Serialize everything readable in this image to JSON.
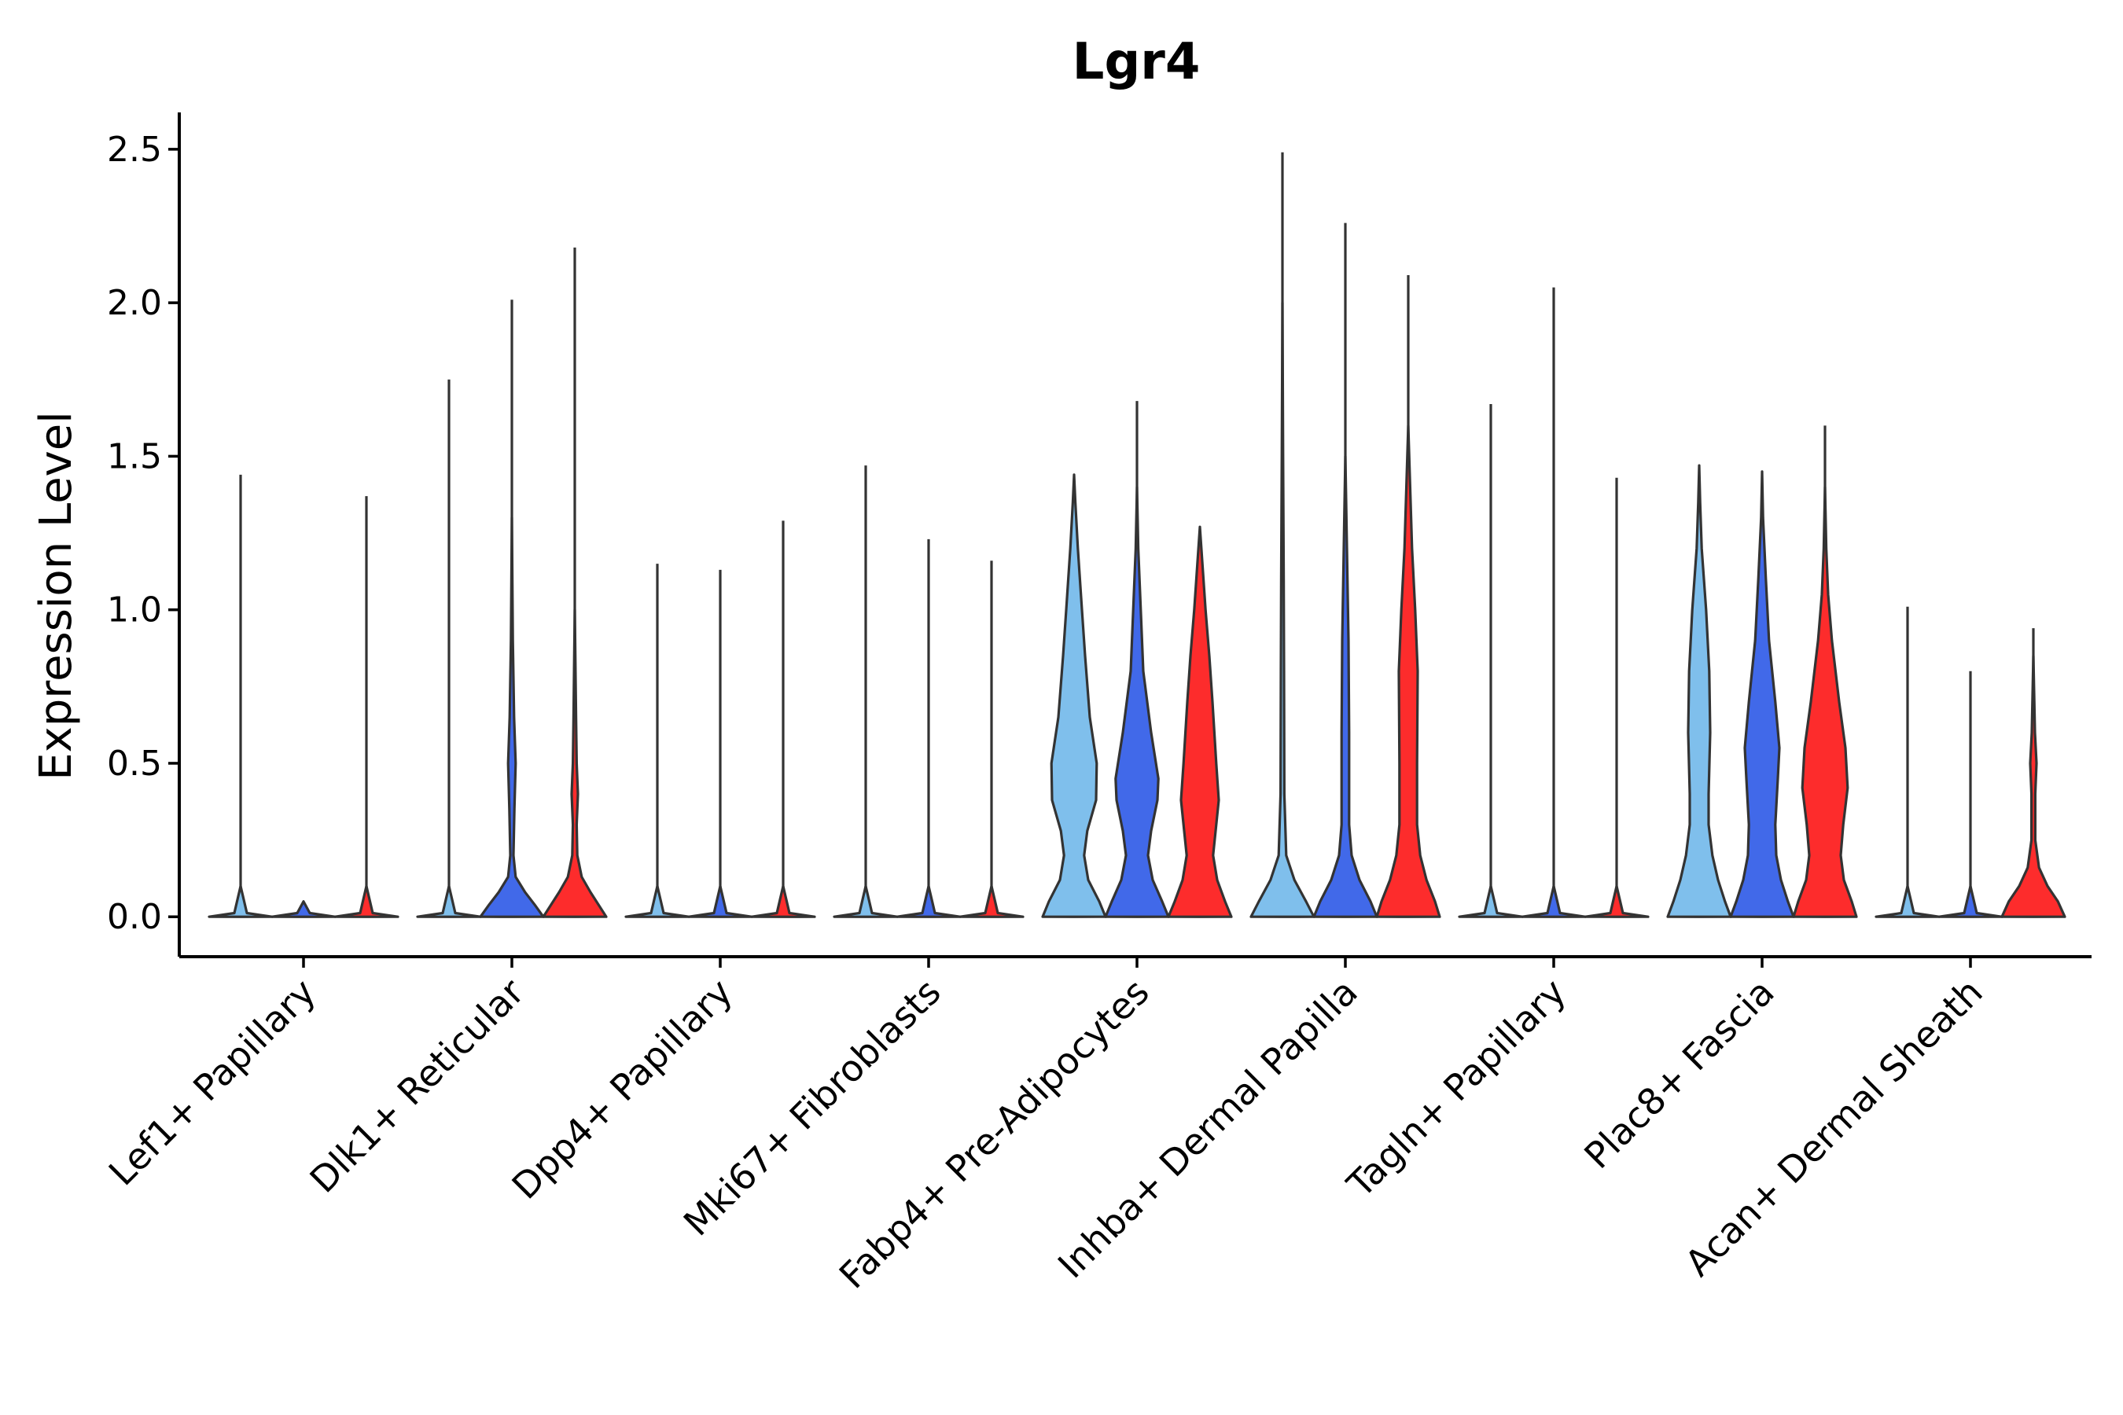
{
  "chart_data": {
    "type": "violin",
    "title": "Lgr4",
    "xlabel": "",
    "ylabel": "Expression Level",
    "ylim": [
      -0.13,
      2.62
    ],
    "yticks": [
      "0.0",
      "0.5",
      "1.0",
      "1.5",
      "2.0",
      "2.5"
    ],
    "ytick_values": [
      0.0,
      0.5,
      1.0,
      1.5,
      2.0,
      2.5
    ],
    "colors": {
      "light": "#7fbfec",
      "blue": "#4169e9",
      "red": "#fd2c2c"
    },
    "groups": [
      {
        "name": "Lef1+ Papillary",
        "violins": [
          {
            "color": "light",
            "max": 1.44,
            "spine": true,
            "profile": [
              [
                0.0,
                1.0
              ],
              [
                0.012,
                0.2
              ],
              [
                0.1,
                0.0
              ]
            ]
          },
          {
            "color": "blue",
            "max": 0.002,
            "spine": false,
            "profile": [
              [
                0.0,
                1.0
              ],
              [
                0.012,
                0.2
              ],
              [
                0.05,
                0.0
              ]
            ]
          },
          {
            "color": "red",
            "max": 1.37,
            "spine": true,
            "profile": [
              [
                0.0,
                1.0
              ],
              [
                0.012,
                0.2
              ],
              [
                0.1,
                0.0
              ]
            ]
          }
        ]
      },
      {
        "name": "Dlk1+ Reticular",
        "violins": [
          {
            "color": "light",
            "max": 1.75,
            "spine": true,
            "profile": [
              [
                0.0,
                1.0
              ],
              [
                0.012,
                0.2
              ],
              [
                0.1,
                0.0
              ]
            ]
          },
          {
            "color": "blue",
            "max": 2.01,
            "spine": true,
            "profile": [
              [
                0.0,
                1.0
              ],
              [
                0.04,
                0.72
              ],
              [
                0.08,
                0.42
              ],
              [
                0.13,
                0.12
              ],
              [
                0.2,
                0.05
              ],
              [
                0.35,
                0.08
              ],
              [
                0.5,
                0.12
              ],
              [
                0.65,
                0.07
              ],
              [
                0.9,
                0.03
              ],
              [
                1.3,
                0.0
              ]
            ]
          },
          {
            "color": "red",
            "max": 2.18,
            "spine": true,
            "profile": [
              [
                0.0,
                1.0
              ],
              [
                0.04,
                0.75
              ],
              [
                0.08,
                0.5
              ],
              [
                0.13,
                0.22
              ],
              [
                0.2,
                0.08
              ],
              [
                0.3,
                0.06
              ],
              [
                0.4,
                0.1
              ],
              [
                0.5,
                0.06
              ],
              [
                0.65,
                0.04
              ],
              [
                1.0,
                0.0
              ]
            ]
          }
        ]
      },
      {
        "name": "Dpp4+ Papillary",
        "violins": [
          {
            "color": "light",
            "max": 1.15,
            "spine": true,
            "profile": [
              [
                0.0,
                1.0
              ],
              [
                0.012,
                0.2
              ],
              [
                0.1,
                0.0
              ]
            ]
          },
          {
            "color": "blue",
            "max": 1.13,
            "spine": true,
            "profile": [
              [
                0.0,
                1.0
              ],
              [
                0.012,
                0.2
              ],
              [
                0.1,
                0.0
              ]
            ]
          },
          {
            "color": "red",
            "max": 1.29,
            "spine": true,
            "profile": [
              [
                0.0,
                1.0
              ],
              [
                0.012,
                0.2
              ],
              [
                0.1,
                0.0
              ]
            ]
          }
        ]
      },
      {
        "name": "Mki67+ Fibroblasts",
        "violins": [
          {
            "color": "light",
            "max": 1.47,
            "spine": true,
            "profile": [
              [
                0.0,
                1.0
              ],
              [
                0.012,
                0.2
              ],
              [
                0.1,
                0.0
              ]
            ]
          },
          {
            "color": "blue",
            "max": 1.23,
            "spine": true,
            "profile": [
              [
                0.0,
                1.0
              ],
              [
                0.012,
                0.2
              ],
              [
                0.1,
                0.0
              ]
            ]
          },
          {
            "color": "red",
            "max": 1.16,
            "spine": true,
            "profile": [
              [
                0.0,
                1.0
              ],
              [
                0.012,
                0.2
              ],
              [
                0.1,
                0.0
              ]
            ]
          }
        ]
      },
      {
        "name": "Fabp4+ Pre-Adipocytes",
        "violins": [
          {
            "color": "light",
            "max": 1.44,
            "spine": false,
            "profile": [
              [
                0.0,
                1.0
              ],
              [
                0.05,
                0.8
              ],
              [
                0.12,
                0.45
              ],
              [
                0.2,
                0.32
              ],
              [
                0.28,
                0.42
              ],
              [
                0.38,
                0.7
              ],
              [
                0.5,
                0.72
              ],
              [
                0.65,
                0.5
              ],
              [
                0.85,
                0.35
              ],
              [
                1.0,
                0.25
              ],
              [
                1.2,
                0.12
              ],
              [
                1.35,
                0.04
              ],
              [
                1.44,
                0.0
              ]
            ]
          },
          {
            "color": "blue",
            "max": 1.68,
            "spine": true,
            "profile": [
              [
                0.0,
                1.0
              ],
              [
                0.05,
                0.8
              ],
              [
                0.12,
                0.5
              ],
              [
                0.2,
                0.35
              ],
              [
                0.28,
                0.45
              ],
              [
                0.38,
                0.65
              ],
              [
                0.45,
                0.68
              ],
              [
                0.6,
                0.45
              ],
              [
                0.8,
                0.2
              ],
              [
                1.0,
                0.12
              ],
              [
                1.2,
                0.04
              ],
              [
                1.4,
                0.0
              ]
            ]
          },
          {
            "color": "red",
            "max": 1.27,
            "spine": false,
            "profile": [
              [
                0.0,
                1.0
              ],
              [
                0.05,
                0.8
              ],
              [
                0.12,
                0.55
              ],
              [
                0.2,
                0.42
              ],
              [
                0.28,
                0.5
              ],
              [
                0.38,
                0.6
              ],
              [
                0.5,
                0.52
              ],
              [
                0.7,
                0.4
              ],
              [
                0.85,
                0.3
              ],
              [
                1.0,
                0.18
              ],
              [
                1.15,
                0.08
              ],
              [
                1.27,
                0.0
              ]
            ]
          }
        ]
      },
      {
        "name": "Inhba+ Dermal Papilla",
        "violins": [
          {
            "color": "light",
            "max": 2.49,
            "spine": true,
            "profile": [
              [
                0.0,
                1.0
              ],
              [
                0.05,
                0.75
              ],
              [
                0.12,
                0.38
              ],
              [
                0.2,
                0.12
              ],
              [
                0.4,
                0.06
              ],
              [
                0.8,
                0.05
              ],
              [
                1.1,
                0.04
              ],
              [
                1.5,
                0.02
              ],
              [
                2.0,
                0.0
              ]
            ]
          },
          {
            "color": "blue",
            "max": 2.26,
            "spine": true,
            "profile": [
              [
                0.0,
                1.0
              ],
              [
                0.05,
                0.8
              ],
              [
                0.12,
                0.45
              ],
              [
                0.2,
                0.2
              ],
              [
                0.3,
                0.12
              ],
              [
                0.6,
                0.12
              ],
              [
                0.9,
                0.1
              ],
              [
                1.2,
                0.05
              ],
              [
                1.5,
                0.0
              ]
            ]
          },
          {
            "color": "red",
            "max": 2.09,
            "spine": true,
            "profile": [
              [
                0.0,
                1.0
              ],
              [
                0.05,
                0.85
              ],
              [
                0.12,
                0.58
              ],
              [
                0.2,
                0.38
              ],
              [
                0.3,
                0.28
              ],
              [
                0.5,
                0.28
              ],
              [
                0.8,
                0.3
              ],
              [
                1.0,
                0.22
              ],
              [
                1.2,
                0.12
              ],
              [
                1.4,
                0.06
              ],
              [
                1.6,
                0.0
              ]
            ]
          }
        ]
      },
      {
        "name": "Tagln+ Papillary",
        "violins": [
          {
            "color": "light",
            "max": 1.67,
            "spine": true,
            "profile": [
              [
                0.0,
                1.0
              ],
              [
                0.012,
                0.2
              ],
              [
                0.1,
                0.0
              ]
            ]
          },
          {
            "color": "blue",
            "max": 2.05,
            "spine": true,
            "profile": [
              [
                0.0,
                1.0
              ],
              [
                0.012,
                0.2
              ],
              [
                0.1,
                0.0
              ]
            ]
          },
          {
            "color": "red",
            "max": 1.43,
            "spine": true,
            "profile": [
              [
                0.0,
                1.0
              ],
              [
                0.012,
                0.2
              ],
              [
                0.1,
                0.0
              ]
            ]
          }
        ]
      },
      {
        "name": "Plac8+ Fascia",
        "violins": [
          {
            "color": "light",
            "max": 1.47,
            "spine": false,
            "profile": [
              [
                0.0,
                1.0
              ],
              [
                0.05,
                0.82
              ],
              [
                0.12,
                0.6
              ],
              [
                0.2,
                0.42
              ],
              [
                0.3,
                0.3
              ],
              [
                0.4,
                0.3
              ],
              [
                0.6,
                0.35
              ],
              [
                0.8,
                0.32
              ],
              [
                1.0,
                0.22
              ],
              [
                1.2,
                0.08
              ],
              [
                1.35,
                0.03
              ],
              [
                1.47,
                0.0
              ]
            ]
          },
          {
            "color": "blue",
            "max": 1.45,
            "spine": false,
            "profile": [
              [
                0.0,
                1.0
              ],
              [
                0.05,
                0.82
              ],
              [
                0.12,
                0.6
              ],
              [
                0.2,
                0.45
              ],
              [
                0.3,
                0.42
              ],
              [
                0.45,
                0.5
              ],
              [
                0.55,
                0.55
              ],
              [
                0.7,
                0.42
              ],
              [
                0.9,
                0.22
              ],
              [
                1.1,
                0.12
              ],
              [
                1.3,
                0.03
              ],
              [
                1.45,
                0.0
              ]
            ]
          },
          {
            "color": "red",
            "max": 1.6,
            "spine": true,
            "profile": [
              [
                0.0,
                1.0
              ],
              [
                0.05,
                0.85
              ],
              [
                0.12,
                0.6
              ],
              [
                0.2,
                0.5
              ],
              [
                0.3,
                0.58
              ],
              [
                0.42,
                0.72
              ],
              [
                0.55,
                0.65
              ],
              [
                0.7,
                0.45
              ],
              [
                0.9,
                0.22
              ],
              [
                1.05,
                0.1
              ],
              [
                1.2,
                0.04
              ],
              [
                1.4,
                0.0
              ]
            ]
          }
        ]
      },
      {
        "name": "Acan+ Dermal Sheath",
        "violins": [
          {
            "color": "light",
            "max": 1.01,
            "spine": true,
            "profile": [
              [
                0.0,
                1.0
              ],
              [
                0.012,
                0.2
              ],
              [
                0.1,
                0.0
              ]
            ]
          },
          {
            "color": "blue",
            "max": 0.8,
            "spine": true,
            "profile": [
              [
                0.0,
                1.0
              ],
              [
                0.012,
                0.2
              ],
              [
                0.1,
                0.0
              ]
            ]
          },
          {
            "color": "red",
            "max": 0.94,
            "spine": true,
            "profile": [
              [
                0.0,
                1.0
              ],
              [
                0.05,
                0.78
              ],
              [
                0.1,
                0.45
              ],
              [
                0.16,
                0.18
              ],
              [
                0.25,
                0.06
              ],
              [
                0.4,
                0.06
              ],
              [
                0.5,
                0.1
              ],
              [
                0.6,
                0.05
              ],
              [
                0.75,
                0.02
              ],
              [
                0.85,
                0.0
              ]
            ]
          }
        ]
      }
    ]
  }
}
